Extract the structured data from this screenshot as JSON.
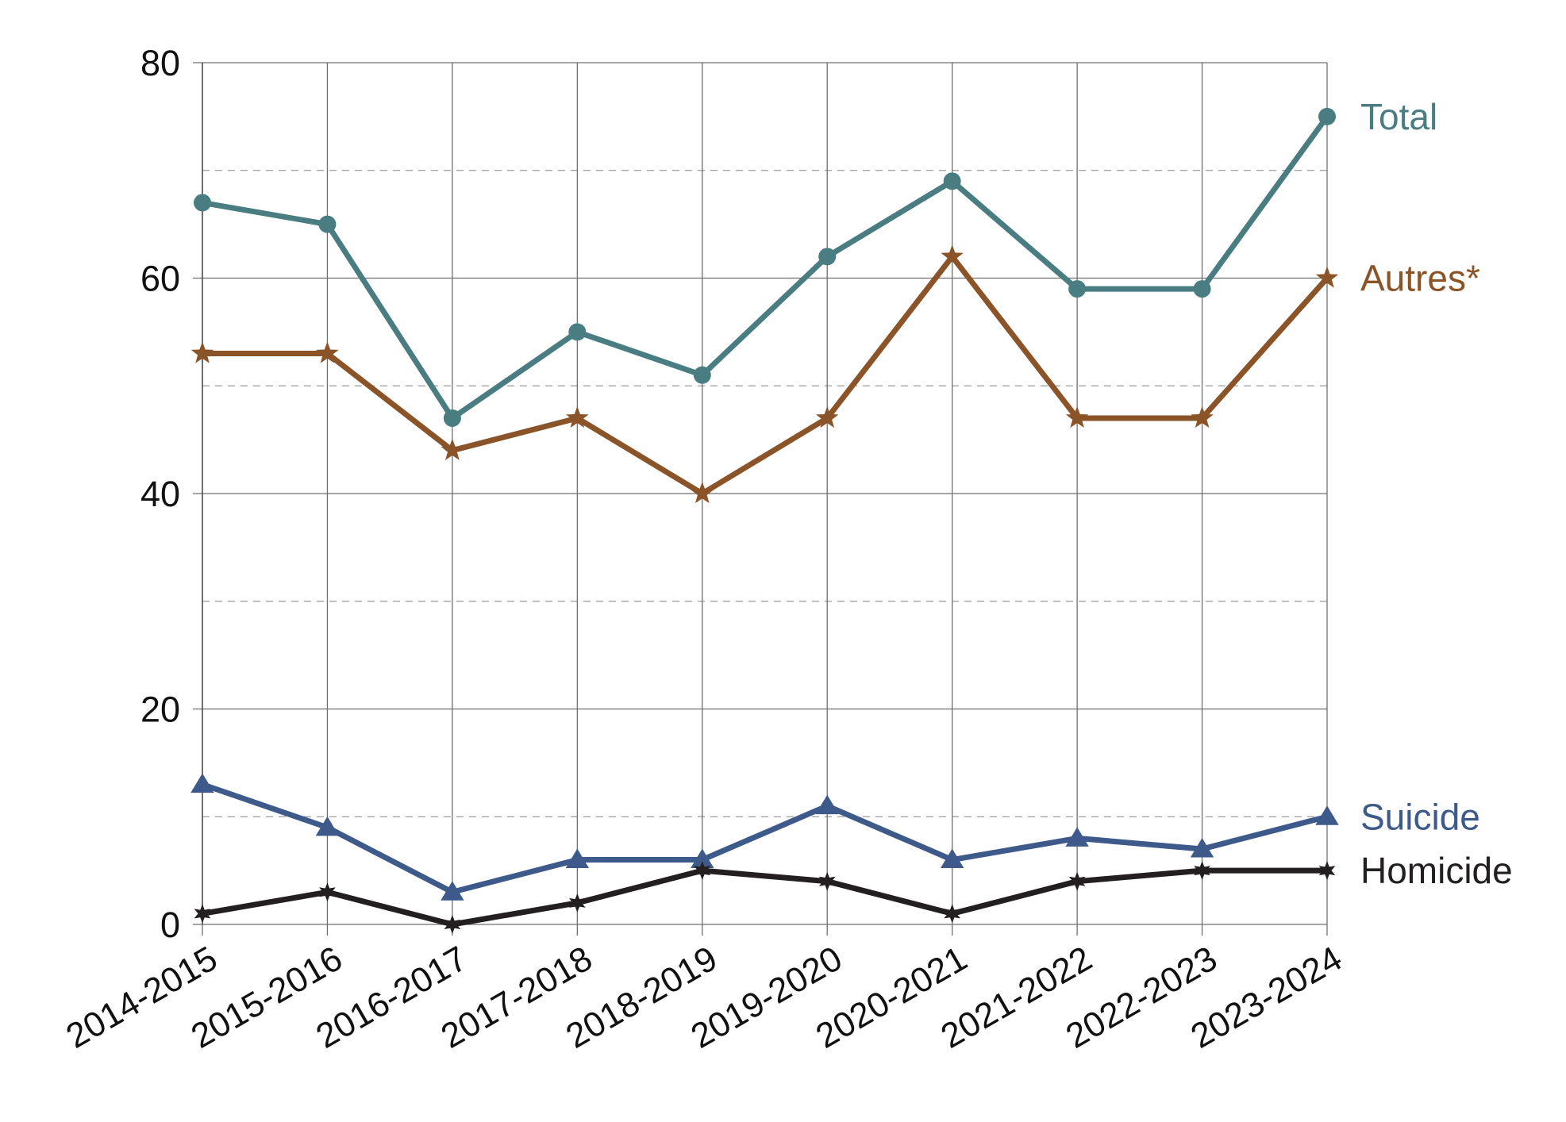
{
  "chart_data": {
    "type": "line",
    "title": "",
    "xlabel": "",
    "ylabel": "",
    "categories": [
      "2014-2015",
      "2015-2016",
      "2016-2017",
      "2017-2018",
      "2018-2019",
      "2019-2020",
      "2020-2021",
      "2021-2022",
      "2022-2023",
      "2023-2024"
    ],
    "ylim": [
      0,
      80
    ],
    "yticks": [
      "0",
      "20",
      "40",
      "60",
      "80"
    ],
    "minor_gridlines": [
      10,
      30,
      50,
      70
    ],
    "grid": true,
    "legend": "end-of-line labels",
    "series": [
      {
        "name": "Total",
        "color": "#4a7d82",
        "marker": "circle",
        "values": [
          67,
          65,
          47,
          55,
          51,
          62,
          69,
          59,
          59,
          75
        ]
      },
      {
        "name": "Autres*",
        "color": "#8b5428",
        "marker": "star",
        "values": [
          53,
          53,
          44,
          47,
          40,
          47,
          62,
          47,
          47,
          60
        ]
      },
      {
        "name": "Suicide",
        "color": "#3d5a8a",
        "marker": "triangle",
        "values": [
          13,
          9,
          3,
          6,
          6,
          11,
          6,
          8,
          7,
          10
        ]
      },
      {
        "name": "Homicide",
        "color": "#231f20",
        "marker": "star-small",
        "values": [
          1,
          3,
          0,
          2,
          5,
          4,
          1,
          4,
          5,
          5
        ]
      }
    ]
  }
}
